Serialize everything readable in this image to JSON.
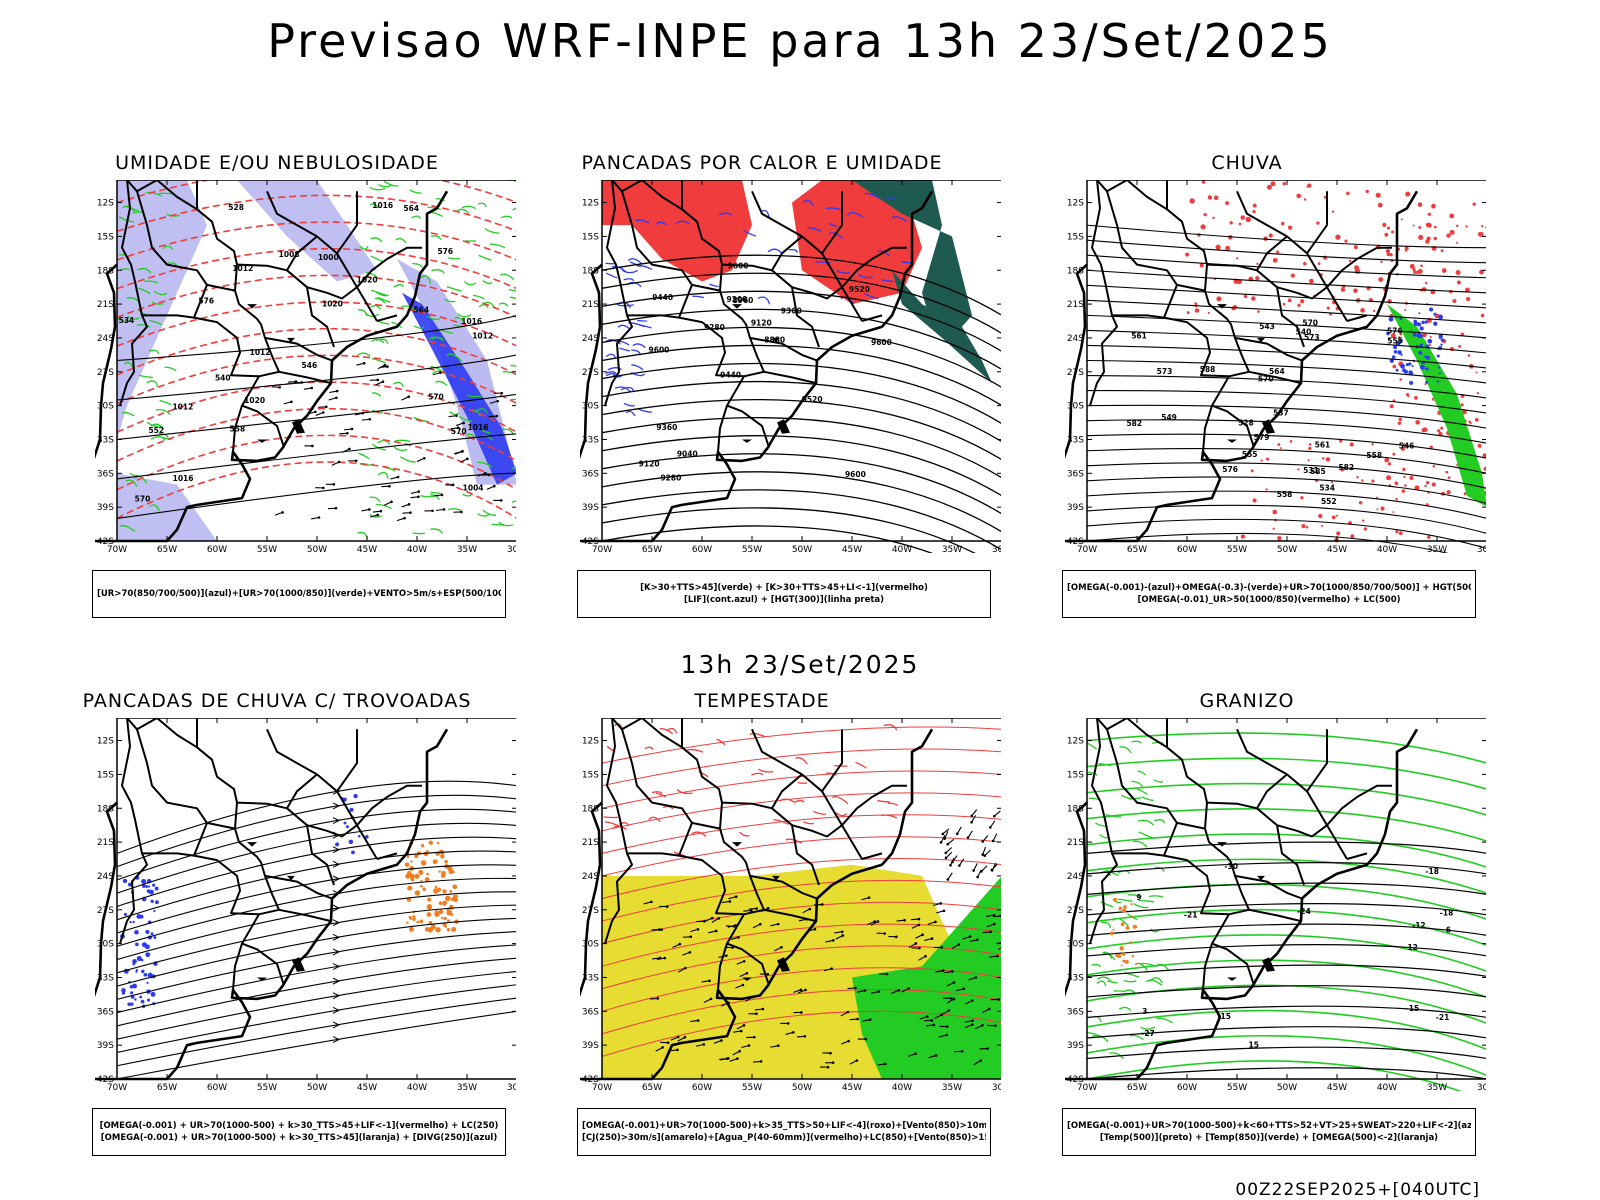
{
  "page": {
    "main_title": "Previsao WRF-INPE  para 13h 23/Set/2025",
    "mid_title": "13h 23/Set/2025",
    "footer": "00Z22SEP2025+[040UTC]"
  },
  "axes": {
    "lat_labels": [
      "12S",
      "15S",
      "18S",
      "21S",
      "24S",
      "27S",
      "30S",
      "33S",
      "36S",
      "39S",
      "42S"
    ],
    "lon_labels": [
      "70W",
      "65W",
      "60W",
      "55W",
      "50W",
      "45W",
      "40W",
      "35W",
      "30W"
    ]
  },
  "colors": {
    "red": "#f03c3c",
    "green": "#22cc22",
    "blue": "#2d3bf0",
    "lavender": "#b4b4f0",
    "darkteal": "#1e5a50",
    "yellow": "#e6dc32",
    "orange": "#f07d1e",
    "black": "#000000"
  },
  "panels": [
    {
      "title": "UMIDADE E/OU NEBULOSIDADE",
      "legend": [
        "[UR>70(850/700/500)](azul)+[UR>70(1000/850)](verde)+VENTO>5m/s+ESP(500/1000)"
      ],
      "contour_labels": [
        "1012",
        "1016",
        "1020",
        "1012",
        "1012",
        "1016",
        "1020",
        "1016",
        "570",
        "576",
        "576",
        "570",
        "564",
        "558",
        "552",
        "546",
        "540",
        "534",
        "528",
        "1008",
        "1004",
        "1000",
        "1016",
        "1012",
        "1020",
        "564",
        "570"
      ]
    },
    {
      "title": "PANCADAS POR CALOR E UMIDADE",
      "legend": [
        "[K>30+TTS>45](verde) + [K>30+TTS>45+LI<-1](vermelho)",
        "[LIF](cont.azul) + [HGT(300)](linha preta)"
      ],
      "contour_labels": [
        "9600",
        "9600",
        "9520",
        "9440",
        "9360",
        "9280",
        "9200",
        "9120",
        "9360",
        "9280",
        "9120",
        "9040",
        "8960",
        "8880",
        "9520",
        "9440",
        "9600",
        "9600"
      ]
    },
    {
      "title": "CHUVA",
      "legend": [
        "[OMEGA(-0.001)-(azul)+OMEGA(-0.3)-(verde)+UR>70(1000/850/700/500)] + HGT(500)",
        "[OMEGA(-0.01)_UR>50(1000/850)(vermelho) + LC(500)"
      ],
      "contour_labels": [
        "588",
        "582",
        "576",
        "573",
        "570",
        "576",
        "573",
        "570",
        "564",
        "561",
        "558",
        "555",
        "552",
        "549",
        "546",
        "543",
        "540",
        "537",
        "534",
        "531",
        "528",
        "561",
        "558",
        "555",
        "582",
        "585",
        "579"
      ]
    },
    {
      "title": "PANCADAS DE CHUVA C/ TROVOADAS",
      "legend": [
        "[OMEGA(-0.001) + UR>70(1000-500) + k>30_TTS>45+LIF<-1](vermelho) + LC(250)",
        "[OMEGA(-0.001) + UR>70(1000-500) + k>30_TTS>45](laranja) + [DIVG(250)](azul)"
      ],
      "contour_labels": []
    },
    {
      "title": "TEMPESTADE",
      "legend": [
        "[OMEGA(-0.001)+UR>70(1000-500)+k>35_TTS>50+LIF<-4](roxo)+[Vento(850)>10m/s](verde)",
        "[CJ(250)>30m/s](amarelo)+[Agua_P(40-60mm)](vermelho)+LC(850)+[Vento(850)>15m/s](vetor)"
      ],
      "contour_labels": []
    },
    {
      "title": "GRANIZO",
      "legend": [
        "[OMEGA(-0.001)+UR>70(1000-500)+k<60+TTS>52+VT>25+SWEAT>220+LIF<-2](azul)",
        "[Temp(500)](preto) + [Temp(850)](verde) + [OMEGA(500)<-2](laranja)"
      ],
      "contour_labels": [
        "-15",
        "-18",
        "-21",
        "-24",
        "-27",
        "-30",
        "-12",
        "-15",
        "-18",
        "-21",
        "6",
        "9",
        "12",
        "15",
        "3"
      ]
    }
  ]
}
